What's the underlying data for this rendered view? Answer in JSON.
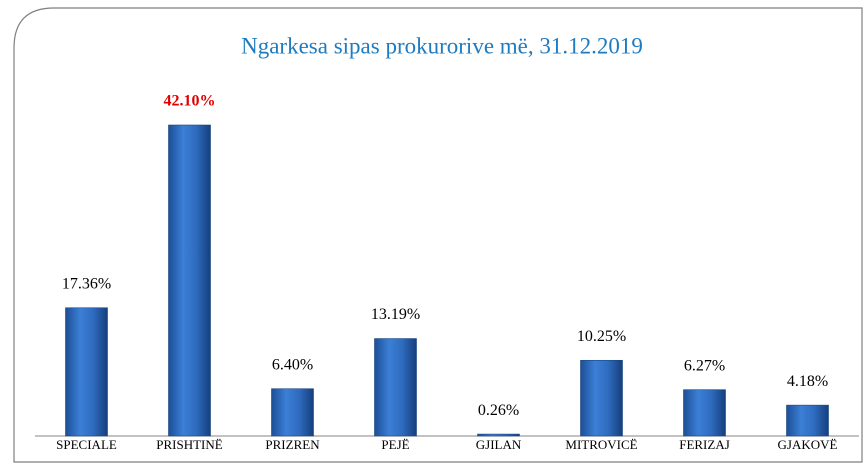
{
  "chart_data": {
    "type": "bar",
    "title": "Ngarkesa sipas prokurorive më, 31.12.2019",
    "categories": [
      "SPECIALE",
      "PRISHTINË",
      "PRIZREN",
      "PEJË",
      "GJILAN",
      "MITROVICË",
      "FERIZAJ",
      "GJAKOVË"
    ],
    "values": [
      17.36,
      42.1,
      6.4,
      13.19,
      0.26,
      10.25,
      6.27,
      4.18
    ],
    "value_labels": [
      "17.36%",
      "42.10%",
      "6.40%",
      "13.19%",
      "0.26%",
      "10.25%",
      "6.27%",
      "4.18%"
    ],
    "value_label_colors": [
      "#000000",
      "#e00000",
      "#000000",
      "#000000",
      "#000000",
      "#000000",
      "#000000",
      "#000000"
    ],
    "color": "#2f6cc0"
  }
}
